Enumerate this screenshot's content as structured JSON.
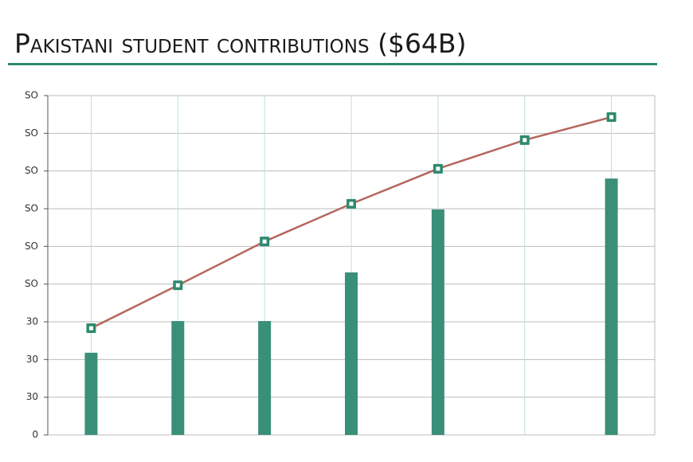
{
  "chart_data": {
    "type": "combo",
    "title": "Pakistani student contributions ($64B)",
    "categories": [
      null,
      null,
      null,
      null,
      null,
      null,
      null
    ],
    "series": [
      {
        "type": "bar",
        "color": "#3a8f78",
        "values": [
          21.8,
          30.2,
          30.2,
          43.1,
          59.8,
          null,
          68.0
        ]
      },
      {
        "type": "line",
        "color": "#b5675e",
        "marker_color": "#2e8a6e",
        "values": [
          28.3,
          39.7,
          51.3,
          61.3,
          70.6,
          78.2,
          84.3
        ]
      }
    ],
    "ylim": [
      0,
      90
    ],
    "yticks": [
      0,
      {
        "value": 10,
        "label": "30"
      },
      {
        "value": 20,
        "label": "30"
      },
      {
        "value": 30,
        "label": "30"
      },
      {
        "value": 40,
        "label": "SO"
      },
      {
        "value": 50,
        "label": "SO"
      },
      {
        "value": 60,
        "label": "SO"
      },
      {
        "value": 70,
        "label": "SO"
      },
      {
        "value": 80,
        "label": "SO"
      },
      {
        "value": 90,
        "label": "SO"
      }
    ],
    "grid": true
  }
}
